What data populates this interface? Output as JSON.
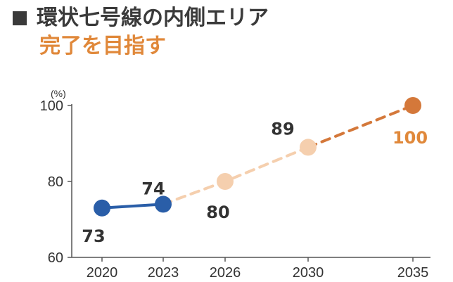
{
  "header": {
    "title": "環状七号線の内側エリア",
    "subtitle": "完了を目指す",
    "title_color": "#3a3a3a",
    "subtitle_color": "#e0883a"
  },
  "chart_data": {
    "type": "line",
    "title": "環状七号線の内側エリア",
    "subtitle": "完了を目指す",
    "ylabel": "(%)",
    "xlabel": "",
    "ylim": [
      60,
      100
    ],
    "yticks": [
      60,
      80,
      100
    ],
    "grid": false,
    "x": [
      2020,
      2023,
      2026,
      2030,
      2035
    ],
    "xtick_labels": [
      "2020",
      "2023",
      "2026",
      "2030",
      "2035"
    ],
    "series": [
      {
        "role": "actual",
        "style": "solid",
        "color": "#2a5ea8",
        "points": [
          {
            "x": 2020,
            "y": 73,
            "label": "73"
          },
          {
            "x": 2023,
            "y": 74,
            "label": "74"
          }
        ]
      },
      {
        "role": "target",
        "style": "dashed",
        "color": "#f5cfae",
        "points": [
          {
            "x": 2023,
            "y": 74
          },
          {
            "x": 2026,
            "y": 80,
            "label": "80"
          },
          {
            "x": 2030,
            "y": 89,
            "label": "89"
          }
        ]
      },
      {
        "role": "final-target",
        "style": "dashed",
        "color": "#d4783a",
        "points": [
          {
            "x": 2030,
            "y": 89
          },
          {
            "x": 2035,
            "y": 100,
            "label": "100"
          }
        ]
      }
    ],
    "label_colors": {
      "dark": "#333333",
      "accent": "#e0883a"
    }
  }
}
